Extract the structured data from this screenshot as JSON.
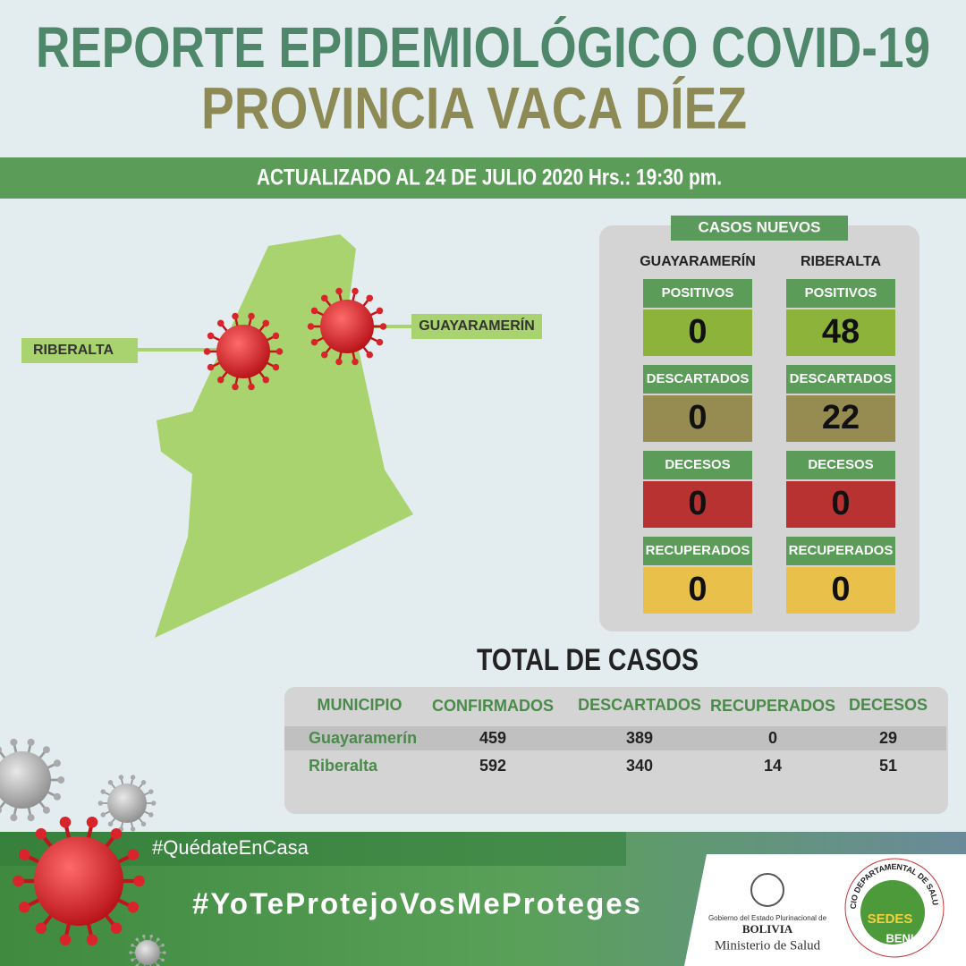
{
  "header": {
    "title": "REPORTE EPIDEMIOLÓGICO COVID-19",
    "subtitle": "PROVINCIA VACA DÍEZ",
    "updated": "ACTUALIZADO AL 24 DE JULIO 2020 Hrs.: 19:30 pm."
  },
  "map": {
    "labels": [
      "RIBERALTA",
      "GUAYARAMERÍN"
    ]
  },
  "new_cases": {
    "title": "CASOS NUEVOS",
    "columns": [
      {
        "name": "GUAYARAMERÍN",
        "items": [
          {
            "label": "POSITIVOS",
            "value": 0
          },
          {
            "label": "DESCARTADOS",
            "value": 0
          },
          {
            "label": "DECESOS",
            "value": 0
          },
          {
            "label": "RECUPERADOS",
            "value": 0
          }
        ]
      },
      {
        "name": "RIBERALTA",
        "items": [
          {
            "label": "POSITIVOS",
            "value": 48
          },
          {
            "label": "DESCARTADOS",
            "value": 22
          },
          {
            "label": "DECESOS",
            "value": 0
          },
          {
            "label": "RECUPERADOS",
            "value": 0
          }
        ]
      }
    ]
  },
  "totals": {
    "title": "TOTAL DE CASOS",
    "header": [
      "MUNICIPIO",
      "CONFIRMADOS",
      "DESCARTADOS",
      "RECUPERADOS",
      "DECESOS"
    ],
    "rows": [
      [
        "Guayaramerín",
        459,
        389,
        0,
        29
      ],
      [
        "Riberalta",
        592,
        340,
        14,
        51
      ]
    ]
  },
  "footer": {
    "hashtags": [
      "#QuédateEnCasa",
      "#YoTeProtejoVosMeProteges"
    ],
    "logos": {
      "gov_line": "Gobierno del Estado Plurinacional de",
      "country": "BOLIVIA",
      "ministry": "Ministerio de Salud",
      "sedes_ring": "SERVICIO DEPARTAMENTAL DE SALUD-BENI",
      "sedes": "SEDES",
      "beni": "BENI"
    }
  }
}
